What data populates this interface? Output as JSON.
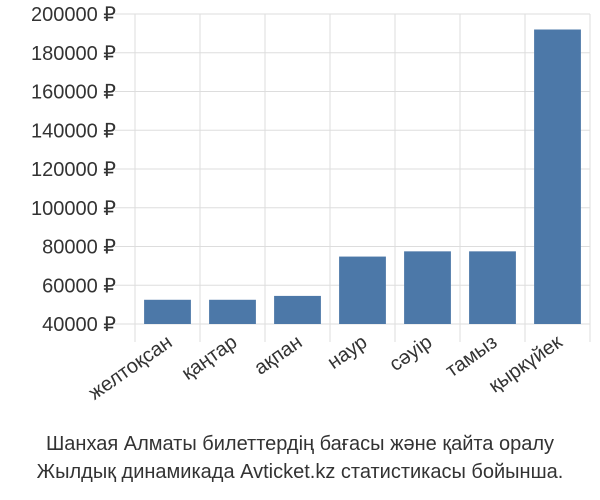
{
  "chart_data": {
    "type": "bar",
    "categories": [
      "желтоқсан",
      "қаңтар",
      "ақпан",
      "наур",
      "сәуір",
      "тамыз",
      "қыркүйек"
    ],
    "values": [
      52500,
      52500,
      54500,
      74800,
      77500,
      77500,
      192000
    ],
    "ylim": [
      40000,
      200000
    ],
    "yticks": [
      40000,
      60000,
      80000,
      100000,
      120000,
      140000,
      160000,
      180000,
      200000
    ],
    "ytick_labels": [
      "40000 ₽",
      "60000 ₽",
      "80000 ₽",
      "100000 ₽",
      "120000 ₽",
      "140000 ₽",
      "160000 ₽",
      "180000 ₽",
      "200000 ₽"
    ],
    "grid": true,
    "bar_color": "#4c78a8"
  },
  "caption": {
    "line1": "Шанхая Алматы билеттердің бағасы және қайта оралу",
    "line2": "Жылдық динамикада Avticket.kz статистикасы бойынша."
  }
}
